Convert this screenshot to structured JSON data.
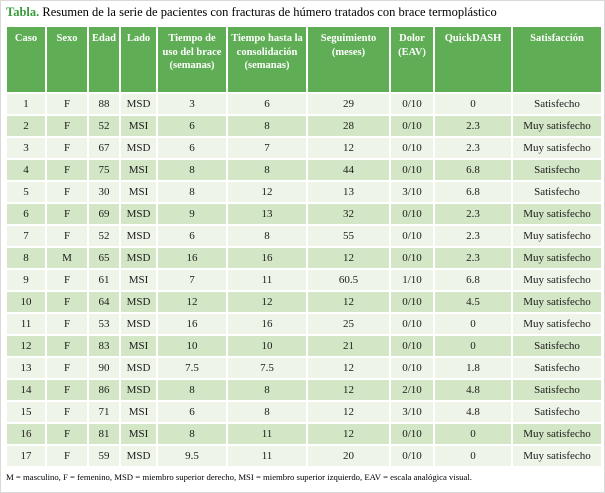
{
  "title": {
    "label": "Tabla.",
    "text": "Resumen de la serie de pacientes con fracturas de húmero tratados con brace termoplástico"
  },
  "table": {
    "headers": [
      "Caso",
      "Sexo",
      "Edad",
      "Lado",
      "Tiempo de uso del brace (semanas)",
      "Tiempo hasta la consolidación (semanas)",
      "Seguimiento (meses)",
      "Dolor (EAV)",
      "QuickDASH",
      "Satisfacción"
    ],
    "rows": [
      [
        "1",
        "F",
        "88",
        "MSD",
        "3",
        "6",
        "29",
        "0/10",
        "0",
        "Satisfecho"
      ],
      [
        "2",
        "F",
        "52",
        "MSI",
        "6",
        "8",
        "28",
        "0/10",
        "2.3",
        "Muy satisfecho"
      ],
      [
        "3",
        "F",
        "67",
        "MSD",
        "6",
        "7",
        "12",
        "0/10",
        "2.3",
        "Muy satisfecho"
      ],
      [
        "4",
        "F",
        "75",
        "MSI",
        "8",
        "8",
        "44",
        "0/10",
        "6.8",
        "Satisfecho"
      ],
      [
        "5",
        "F",
        "30",
        "MSI",
        "8",
        "12",
        "13",
        "3/10",
        "6.8",
        "Satisfecho"
      ],
      [
        "6",
        "F",
        "69",
        "MSD",
        "9",
        "13",
        "32",
        "0/10",
        "2.3",
        "Muy satisfecho"
      ],
      [
        "7",
        "F",
        "52",
        "MSD",
        "6",
        "8",
        "55",
        "0/10",
        "2.3",
        "Muy satisfecho"
      ],
      [
        "8",
        "M",
        "65",
        "MSD",
        "16",
        "16",
        "12",
        "0/10",
        "2.3",
        "Muy satisfecho"
      ],
      [
        "9",
        "F",
        "61",
        "MSI",
        "7",
        "11",
        "60.5",
        "1/10",
        "6.8",
        "Muy satisfecho"
      ],
      [
        "10",
        "F",
        "64",
        "MSD",
        "12",
        "12",
        "12",
        "0/10",
        "4.5",
        "Muy satisfecho"
      ],
      [
        "11",
        "F",
        "53",
        "MSD",
        "16",
        "16",
        "25",
        "0/10",
        "0",
        "Muy satisfecho"
      ],
      [
        "12",
        "F",
        "83",
        "MSI",
        "10",
        "10",
        "21",
        "0/10",
        "0",
        "Satisfecho"
      ],
      [
        "13",
        "F",
        "90",
        "MSD",
        "7.5",
        "7.5",
        "12",
        "0/10",
        "1.8",
        "Satisfecho"
      ],
      [
        "14",
        "F",
        "86",
        "MSD",
        "8",
        "8",
        "12",
        "2/10",
        "4.8",
        "Satisfecho"
      ],
      [
        "15",
        "F",
        "71",
        "MSI",
        "6",
        "8",
        "12",
        "3/10",
        "4.8",
        "Satisfecho"
      ],
      [
        "16",
        "F",
        "81",
        "MSI",
        "8",
        "11",
        "12",
        "0/10",
        "0",
        "Muy satisfecho"
      ],
      [
        "17",
        "F",
        "59",
        "MSD",
        "9.5",
        "11",
        "20",
        "0/10",
        "0",
        "Muy satisfecho"
      ]
    ]
  },
  "footnote": "M = masculino, F = femenino, MSD = miembro superior derecho, MSI = miembro superior izquierdo, EAV = escala analógica visual.",
  "colors": {
    "header_bg": "#5fad55",
    "row_even": "#d3e6c5",
    "row_odd": "#eef5e8",
    "title_accent": "#389c3c",
    "header_text": "#ffffff",
    "body_text": "#1c1c1c"
  }
}
